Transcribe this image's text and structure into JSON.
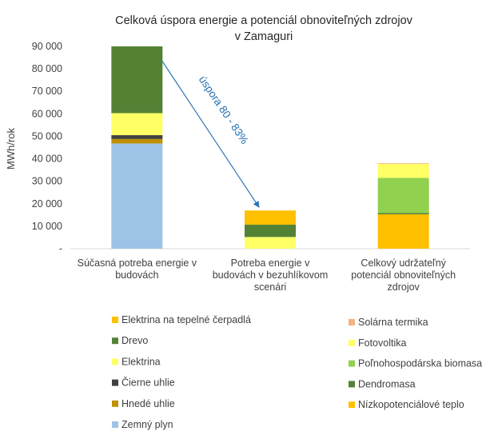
{
  "chart_data": {
    "type": "bar",
    "stacked": true,
    "title_lines": [
      "Celková úspora energie a potenciál obnoviteľných zdrojov",
      "v Zamaguri"
    ],
    "ylabel": "MWh/rok",
    "ylim": [
      0,
      90000
    ],
    "yticks": [
      0,
      10000,
      20000,
      30000,
      40000,
      50000,
      60000,
      70000,
      80000,
      90000
    ],
    "ytick_labels": [
      "-",
      "10 000",
      "20 000",
      "30 000",
      "40 000",
      "50 000",
      "60 000",
      "70 000",
      "80 000",
      "90 000"
    ],
    "grid": false,
    "categories": [
      {
        "lines": [
          "Súčasná potreba energie v",
          "budovách"
        ]
      },
      {
        "lines": [
          "Potreba energie v",
          "budovách v bezuhlíkovom",
          "scenári"
        ]
      },
      {
        "lines": [
          "Celkový udržateľný",
          "potenciál obnoviteľných",
          "zdrojov"
        ]
      }
    ],
    "series": [
      {
        "name": "Zemný plyn",
        "color": "#9dc3e6",
        "values": [
          46800,
          0,
          0
        ]
      },
      {
        "name": "Hnedé uhlie",
        "color": "#bf9000",
        "values": [
          2000,
          0,
          0
        ]
      },
      {
        "name": "Čierne uhlie",
        "color": "#404040",
        "values": [
          1700,
          0,
          0
        ]
      },
      {
        "name": "Elektrina",
        "color": "#ffff66",
        "values": [
          9800,
          5200,
          0
        ]
      },
      {
        "name": "Drevo",
        "color": "#548235",
        "values": [
          29700,
          5500,
          0
        ]
      },
      {
        "name": "Elektrina na tepelné čerpadlá",
        "color": "#ffc000",
        "values": [
          0,
          6300,
          0
        ]
      },
      {
        "name": "Nízkopotenciálové teplo",
        "color": "#ffc000",
        "values": [
          0,
          0,
          15300
        ]
      },
      {
        "name": "Dendromasa",
        "color": "#548235",
        "values": [
          0,
          0,
          600
        ]
      },
      {
        "name": "Poľnohospodárska biomasa",
        "color": "#92d050",
        "values": [
          0,
          0,
          15600
        ]
      },
      {
        "name": "Fotovoltika",
        "color": "#ffff66",
        "values": [
          0,
          0,
          6200
        ]
      },
      {
        "name": "Solárna termika",
        "color": "#f4b183",
        "values": [
          0,
          0,
          300
        ]
      }
    ],
    "legend_left": [
      "Elektrina na tepelné čerpadlá",
      "Drevo",
      "Elektrina",
      "Čierne uhlie",
      "Hnedé uhlie",
      "Zemný plyn"
    ],
    "legend_right": [
      "Solárna termika",
      "Fotovoltika",
      "Poľnohospodárska biomasa",
      "Dendromasa",
      "Nízkopotenciálové teplo"
    ],
    "annotation": {
      "text": "úspora 80 - 83%",
      "color": "#2e75b6"
    }
  }
}
